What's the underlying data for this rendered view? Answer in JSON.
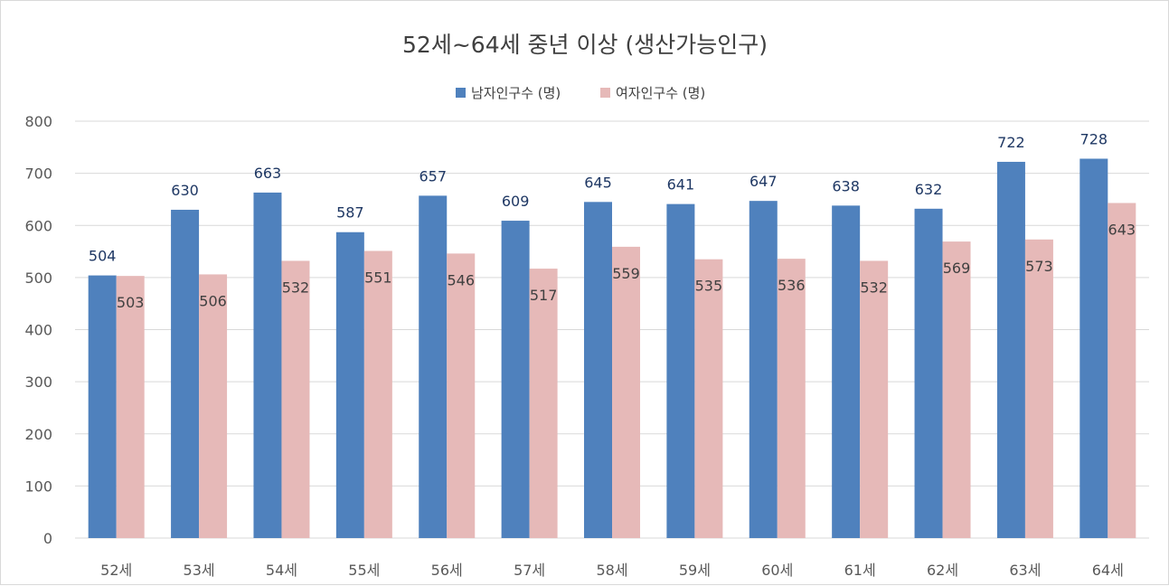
{
  "chart_data": {
    "type": "bar",
    "title": "52세~64세 중년 이상 (생산가능인구)",
    "categories": [
      "52세",
      "53세",
      "54세",
      "55세",
      "56세",
      "57세",
      "58세",
      "59세",
      "60세",
      "61세",
      "62세",
      "63세",
      "64세"
    ],
    "series": [
      {
        "name": "남자인구수 (명)",
        "color": "#4f81bd",
        "values": [
          504,
          630,
          663,
          587,
          657,
          609,
          645,
          641,
          647,
          638,
          632,
          722,
          728
        ]
      },
      {
        "name": "여자인구수 (명)",
        "color": "#e6b9b8",
        "values": [
          503,
          506,
          532,
          551,
          546,
          517,
          559,
          535,
          536,
          532,
          569,
          573,
          643
        ]
      }
    ],
    "yticks": [
      "0",
      "100",
      "200",
      "300",
      "400",
      "500",
      "600",
      "700",
      "800"
    ],
    "ylim": [
      0,
      800
    ],
    "grid": true,
    "legend_position": "top",
    "gridline_color": "#d9d9d9"
  }
}
